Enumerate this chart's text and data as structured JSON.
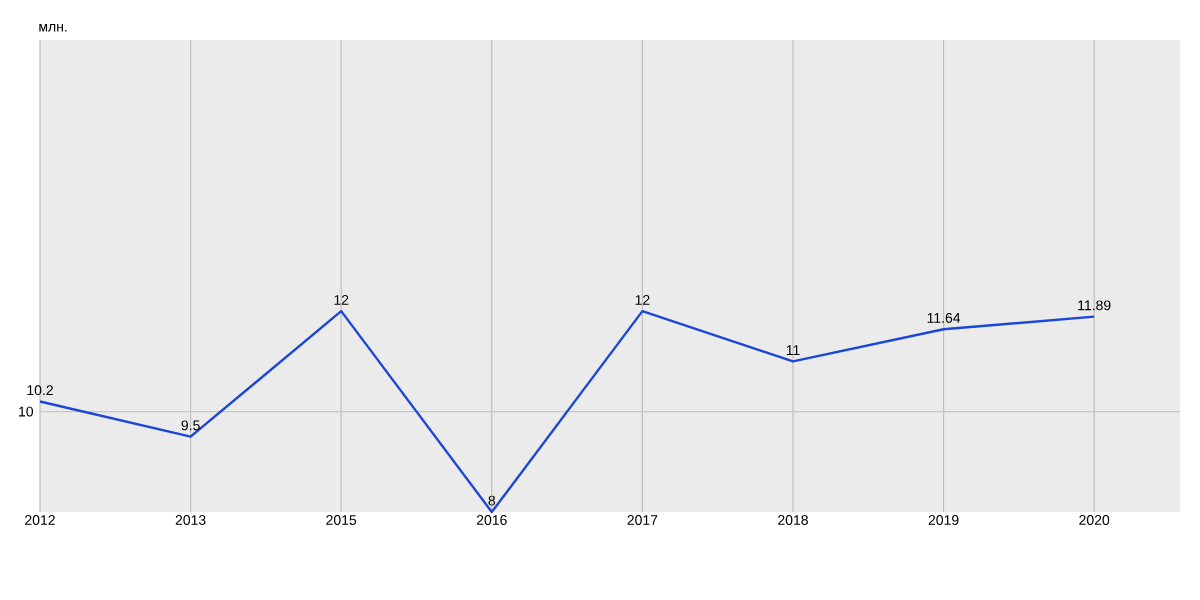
{
  "chart_data": {
    "type": "line",
    "ylabel": "млн.",
    "categories": [
      "2012",
      "2013",
      "2015",
      "2016",
      "2017",
      "2018",
      "2019",
      "2020"
    ],
    "values": [
      10.2,
      9.5,
      12,
      8,
      12,
      11,
      11.64,
      11.89
    ],
    "color": "#1a47d6",
    "ylim": [
      8,
      17.4
    ],
    "grid": "x",
    "data_labels": true,
    "marker": "none",
    "line_style": "solid",
    "ref_lines": [
      {
        "axis": "y",
        "value": 10,
        "label": "10",
        "color": "#c8c8c8"
      }
    ]
  }
}
